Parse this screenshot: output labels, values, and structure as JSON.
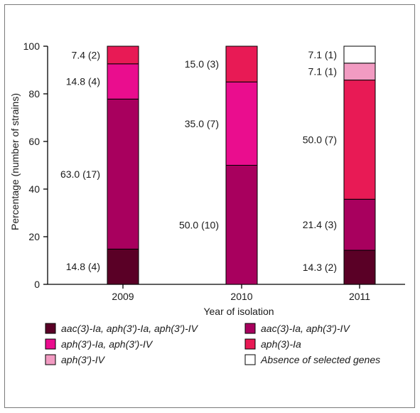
{
  "chart_data": {
    "type": "bar",
    "stacked": true,
    "categories": [
      "2009",
      "2010",
      "2011"
    ],
    "xlabel": "Year of isolation",
    "ylabel": "Percentage (number of strains)",
    "ylim": [
      0,
      100
    ],
    "yticks": [
      0,
      20,
      40,
      60,
      80,
      100
    ],
    "series": [
      {
        "name": "aac(3)-Ia, aph(3′)-Ia, aph(3′)-IV",
        "color": "#5a0026",
        "values": [
          14.8,
          0,
          14.3
        ],
        "labels": [
          "14.8 (4)",
          "",
          "14.3 (2)"
        ]
      },
      {
        "name": "aac(3)-Ia, aph(3′)-IV",
        "color": "#a8005e",
        "values": [
          63.0,
          50.0,
          21.4
        ],
        "labels": [
          "63.0 (17)",
          "50.0 (10)",
          "21.4 (3)"
        ]
      },
      {
        "name": "aph(3′)-Ia, aph(3′)-IV",
        "color": "#ea0d8e",
        "values": [
          14.8,
          35.0,
          0
        ],
        "labels": [
          "14.8 (4)",
          "35.0 (7)",
          ""
        ]
      },
      {
        "name": "aph(3)-Ia",
        "color": "#e81a55",
        "values": [
          7.4,
          15.0,
          50.0
        ],
        "labels": [
          "7.4 (2)",
          "15.0 (3)",
          "50.0 (7)"
        ]
      },
      {
        "name": "aph(3′)-IV",
        "color": "#f29bc2",
        "values": [
          0,
          0,
          7.1
        ],
        "labels": [
          "",
          "",
          "7.1 (1)"
        ]
      },
      {
        "name": "Absence of selected genes",
        "color": "#ffffff",
        "values": [
          0,
          0,
          7.1
        ],
        "labels": [
          "",
          "",
          "7.1 (1)"
        ]
      }
    ],
    "legend_position": "bottom",
    "grid": false
  }
}
